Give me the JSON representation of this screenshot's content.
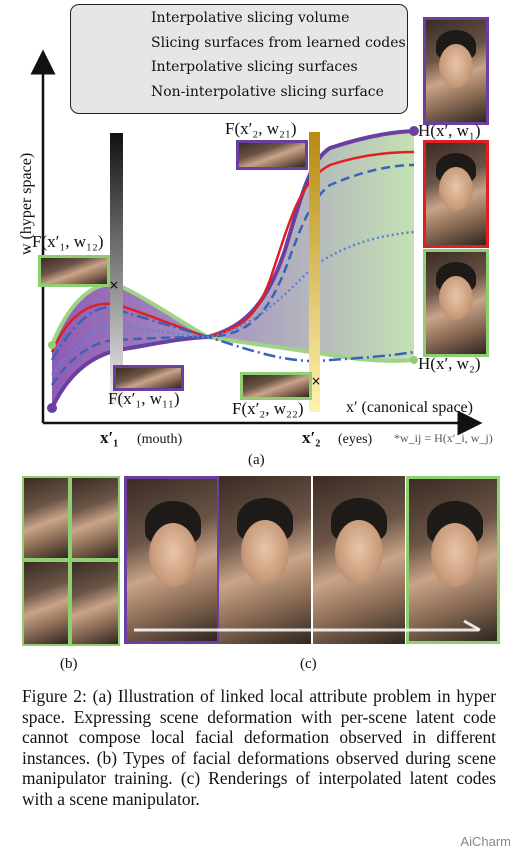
{
  "legend": {
    "items": [
      {
        "label": "Interpolative slicing volume"
      },
      {
        "label": "Slicing surfaces from learned codes"
      },
      {
        "label": "Interpolative slicing surfaces"
      },
      {
        "label": "Non-interpolative slicing surface"
      }
    ]
  },
  "axes": {
    "y_label": "w (hyper space)",
    "x_label": "x′ (canonical space)",
    "x1_label": "x′₁",
    "x1_note": "(mouth)",
    "x2_label": "x′₂",
    "x2_note": "(eyes)",
    "footnote": "*w_ij = H(x′_i, w_j)"
  },
  "labels": {
    "f_x1_w12": "F(x′₁, w₁₂)",
    "f_x1_w11": "F(x′₁, w₁₁)",
    "f_x2_w21": "F(x′₂, w₂₁)",
    "f_x2_w22": "F(x′₂, w₂₂)",
    "h_w1": "H(x′, w₁)",
    "h_w2": "H(x′, w₂)"
  },
  "panel_labels": {
    "a": "(a)",
    "b": "(b)",
    "c": "(c)"
  },
  "caption": "Figure 2: (a) Illustration of linked local attribute problem in hyper space. Expressing scene deformation with per-scene latent code cannot compose local facial deformation observed in different instances. (b) Types of facial deformations observed during scene manipulator training. (c) Renderings of interpolated latent codes with a scene manipulator.",
  "watermark": "AiCharm",
  "colors": {
    "purple": "#6b3fa0",
    "green": "#8fcf72",
    "blue": "#3a63b8",
    "red": "#e02020",
    "gold": "#c9a227"
  }
}
